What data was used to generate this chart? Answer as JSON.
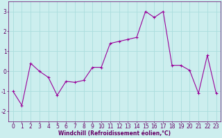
{
  "x": [
    0,
    1,
    2,
    3,
    4,
    5,
    6,
    7,
    8,
    9,
    10,
    11,
    12,
    13,
    14,
    15,
    16,
    17,
    18,
    19,
    20,
    21,
    22,
    23
  ],
  "y": [
    -1.0,
    -1.7,
    0.4,
    0.0,
    -0.3,
    -1.2,
    -0.5,
    -0.55,
    -0.45,
    0.2,
    0.2,
    1.4,
    1.5,
    1.6,
    1.7,
    3.0,
    2.7,
    3.0,
    0.3,
    0.3,
    0.05,
    -1.1,
    0.8,
    -1.1
  ],
  "line_color": "#990099",
  "marker_color": "#990099",
  "bg_color": "#cceeee",
  "grid_color": "#aadddd",
  "xlabel": "Windchill (Refroidissement éolien,°C)",
  "ylim": [
    -2.5,
    3.5
  ],
  "xlim": [
    -0.5,
    23.5
  ],
  "yticks": [
    -2,
    -1,
    0,
    1,
    2,
    3
  ],
  "xticks": [
    0,
    1,
    2,
    3,
    4,
    5,
    6,
    7,
    8,
    9,
    10,
    11,
    12,
    13,
    14,
    15,
    16,
    17,
    18,
    19,
    20,
    21,
    22,
    23
  ],
  "font_color": "#660066",
  "label_fontsize": 5.5,
  "tick_fontsize": 5.5
}
